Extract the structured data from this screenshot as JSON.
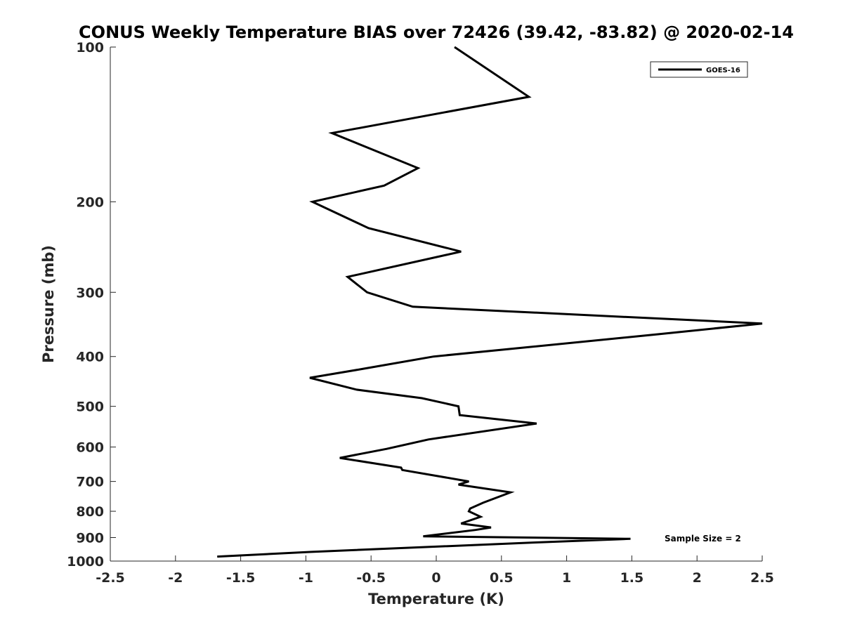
{
  "chart_data": {
    "type": "line",
    "title": "CONUS Weekly Temperature BIAS over 72426 (39.42, -83.82) @ 2020-02-14",
    "xlabel": "Temperature (K)",
    "ylabel": "Pressure (mb)",
    "xlim": [
      -2.5,
      2.5
    ],
    "ylim": [
      1000,
      100
    ],
    "yscale": "log",
    "xticks": [
      -2.5,
      -2,
      -1.5,
      -1,
      -0.5,
      0,
      0.5,
      1,
      1.5,
      2,
      2.5
    ],
    "xtick_labels": [
      "-2.5",
      "-2",
      "-1.5",
      "-1",
      "-0.5",
      "0",
      "0.5",
      "1",
      "1.5",
      "2",
      "2.5"
    ],
    "yticks": [
      100,
      200,
      300,
      400,
      500,
      600,
      700,
      800,
      900,
      1000
    ],
    "ytick_labels": [
      "100",
      "200",
      "300",
      "400",
      "500",
      "600",
      "700",
      "800",
      "900",
      "1000"
    ],
    "grid": false,
    "legend_position": "top-right",
    "series": [
      {
        "name": "GOES-16",
        "color": "#000000",
        "x": [
          0.14,
          0.71,
          -0.8,
          -0.14,
          -0.4,
          -0.95,
          -0.52,
          0.19,
          -0.68,
          -0.53,
          -0.18,
          2.5,
          1.7,
          -0.02,
          -0.57,
          -0.97,
          -0.61,
          -0.11,
          0.17,
          0.18,
          0.77,
          -0.06,
          -0.38,
          -0.74,
          -0.27,
          -0.26,
          0.25,
          0.17,
          0.57,
          0.36,
          0.26,
          0.25,
          0.34,
          0.19,
          0.42,
          0.3,
          -0.1,
          1.49,
          0.76,
          -0.97,
          -1.68
        ],
        "y": [
          100,
          125,
          147,
          172,
          186,
          200,
          225,
          250,
          280,
          300,
          320,
          345,
          362,
          400,
          423,
          440,
          464,
          482,
          500,
          520,
          540,
          580,
          605,
          630,
          658,
          665,
          700,
          710,
          735,
          770,
          790,
          800,
          820,
          845,
          860,
          870,
          895,
          905,
          920,
          960,
          980
        ]
      }
    ],
    "annotations": [
      "Sample Size = 2"
    ]
  }
}
